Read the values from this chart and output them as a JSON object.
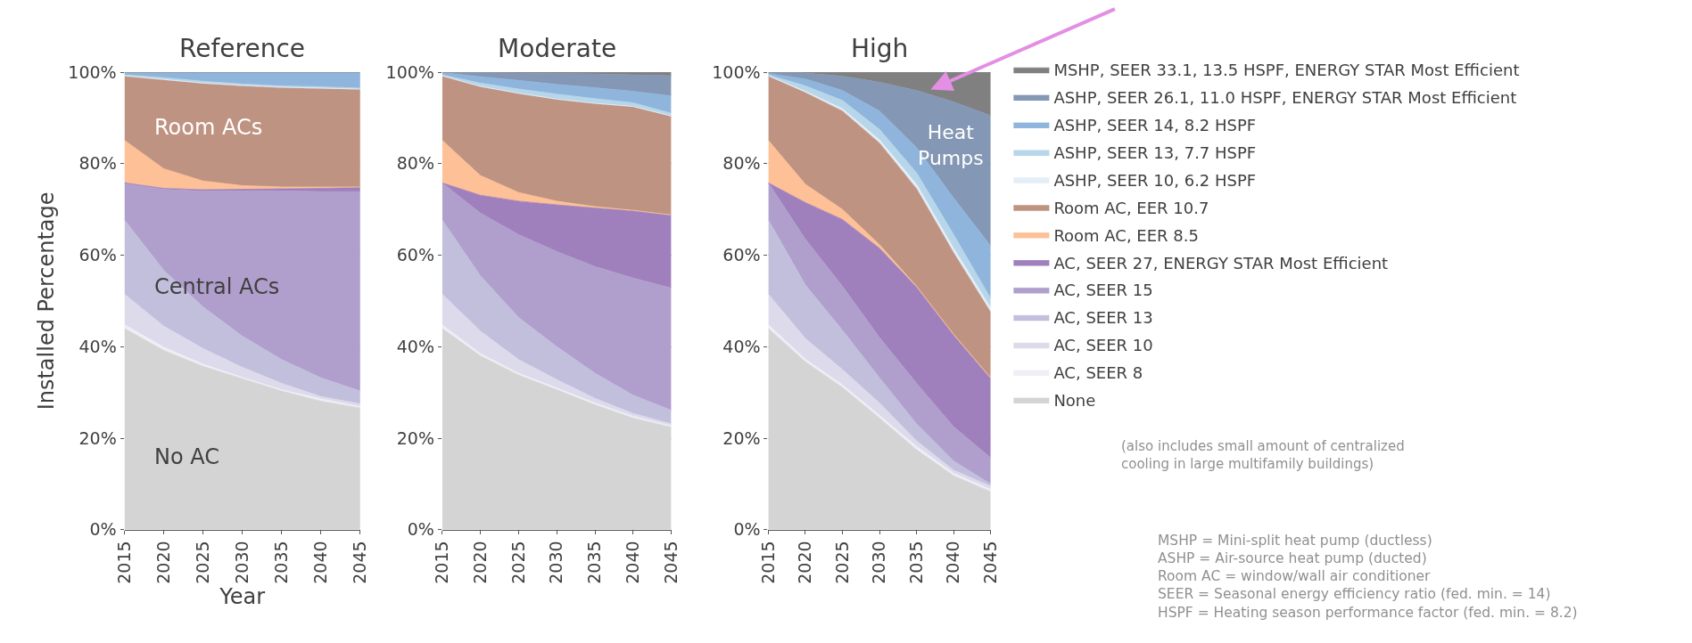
{
  "chart_data": [
    {
      "type": "area",
      "stacked": true,
      "title": "Reference",
      "xlabel": "Year",
      "ylabel": "Installed Percentage",
      "x": [
        2015,
        2020,
        2025,
        2030,
        2035,
        2040,
        2045
      ],
      "xlim": [
        2015,
        2045
      ],
      "xticks": [
        2015,
        2020,
        2025,
        2030,
        2035,
        2040,
        2045
      ],
      "ylim": [
        0,
        100
      ],
      "yticks": [
        {
          "value": 0,
          "label": "0%"
        },
        {
          "value": 20,
          "label": "20%"
        },
        {
          "value": 40,
          "label": "40%"
        },
        {
          "value": 60,
          "label": "60%"
        },
        {
          "value": 80,
          "label": "80%"
        },
        {
          "value": 100,
          "label": "100%"
        }
      ],
      "grid": true,
      "legend": "right",
      "marker": "none",
      "annotations": [
        "Room ACs",
        "Central ACs",
        "No AC"
      ],
      "series": [
        {
          "name": "None",
          "color": "#d4d4d4",
          "values": [
            44.0,
            39.2,
            35.7,
            33.0,
            30.3,
            28.1,
            26.6
          ]
        },
        {
          "name": "AC, SEER 8",
          "color": "#efeef6",
          "values": [
            0.8,
            0.7,
            0.5,
            0.3,
            0.3,
            0.5,
            0.3
          ]
        },
        {
          "name": "AC, SEER 10",
          "color": "#dcdaeb",
          "values": [
            6.7,
            4.6,
            3.4,
            2.2,
            1.4,
            0.5,
            0.6
          ]
        },
        {
          "name": "AC, SEER 13",
          "color": "#c2bfdd",
          "values": [
            16.2,
            12.2,
            9.1,
            6.8,
            5.2,
            4.1,
            2.8
          ]
        },
        {
          "name": "AC, SEER 15",
          "color": "#b09fcc",
          "values": [
            8.1,
            17.7,
            25.3,
            31.7,
            36.8,
            40.7,
            43.6
          ]
        },
        {
          "name": "AC, SEER 27, ENERGY STAR Most Efficient",
          "color": "#9f80bd",
          "values": [
            0,
            0.2,
            0.3,
            0.4,
            0.5,
            0.7,
            0.9
          ]
        },
        {
          "name": "Room AC, EER 8.5",
          "color": "#fdc097",
          "values": [
            9.3,
            4.3,
            1.9,
            0.8,
            0.4,
            0.3,
            0.1
          ]
        },
        {
          "name": "Room AC, EER 10.7",
          "color": "#bf9381",
          "values": [
            14.0,
            19.4,
            21.3,
            21.8,
            21.7,
            21.5,
            21.3
          ]
        },
        {
          "name": "ASHP, SEER 10, 6.2 HSPF",
          "color": "#e3eef8",
          "values": [
            0.1,
            0.1,
            0.1,
            0.1,
            0.1,
            0.1,
            0.1
          ]
        },
        {
          "name": "ASHP, SEER 13, 7.7 HSPF",
          "color": "#b7d6ea",
          "values": [
            0.2,
            0.4,
            0.4,
            0.3,
            0.3,
            0.3,
            0.2
          ]
        },
        {
          "name": "ASHP, SEER 14, 8.2 HSPF",
          "color": "#8fb5dc",
          "values": [
            0.5,
            1.1,
            1.9,
            2.5,
            2.9,
            3.1,
            3.4
          ]
        },
        {
          "name": "ASHP, SEER 26.1, 11.0 HSPF, ENERGY STAR Most Efficient",
          "color": "#8497b4",
          "values": [
            0.1,
            0.1,
            0.1,
            0.1,
            0.1,
            0.1,
            0.1
          ]
        },
        {
          "name": "MSHP, SEER 33.1, 13.5 HSPF, ENERGY STAR Most Efficient",
          "color": "#808080",
          "values": [
            null,
            null,
            null,
            null,
            null,
            null,
            null
          ]
        }
      ]
    },
    {
      "type": "area",
      "stacked": true,
      "title": "Moderate",
      "x": [
        2015,
        2020,
        2025,
        2030,
        2035,
        2040,
        2045
      ],
      "xlim": [
        2015,
        2045
      ],
      "xticks": [
        2015,
        2020,
        2025,
        2030,
        2035,
        2040,
        2045
      ],
      "ylim": [
        0,
        100
      ],
      "yticks": [
        {
          "value": 0,
          "label": "0%"
        },
        {
          "value": 20,
          "label": "20%"
        },
        {
          "value": 40,
          "label": "40%"
        },
        {
          "value": 60,
          "label": "60%"
        },
        {
          "value": 80,
          "label": "80%"
        },
        {
          "value": 100,
          "label": "100%"
        }
      ],
      "grid": true,
      "marker": "none",
      "series": [
        {
          "color": "#d4d4d4",
          "values": [
            44.0,
            38.0,
            33.8,
            30.6,
            27.3,
            24.4,
            22.4
          ]
        },
        {
          "color": "#efeef6",
          "values": [
            0.8,
            0.5,
            0.4,
            0.4,
            0.4,
            0.4,
            0.3
          ]
        },
        {
          "color": "#dcdaeb",
          "values": [
            6.7,
            4.9,
            3.0,
            1.8,
            1.0,
            0.6,
            0.4
          ]
        },
        {
          "color": "#c2bfdd",
          "values": [
            16.2,
            12.1,
            9.2,
            7.2,
            5.5,
            4.0,
            3.0
          ]
        },
        {
          "color": "#b09fcc",
          "values": [
            8.1,
            13.7,
            18.1,
            20.8,
            23.3,
            25.6,
            26.7
          ]
        },
        {
          "color": "#9f80bd",
          "values": [
            0,
            3.9,
            7.3,
            10.2,
            12.8,
            14.7,
            15.9
          ]
        },
        {
          "color": "#fdc097",
          "values": [
            9.3,
            4.3,
            1.9,
            0.8,
            0.3,
            0.1,
            0.1
          ]
        },
        {
          "color": "#bf9381",
          "values": [
            14.0,
            19.4,
            21.6,
            22.2,
            22.5,
            22.6,
            21.5
          ]
        },
        {
          "color": "#e3eef8",
          "values": [
            0.1,
            0.1,
            0.1,
            0.1,
            0.1,
            0.1,
            0.1
          ]
        },
        {
          "color": "#b7d6ea",
          "values": [
            0.2,
            0.7,
            0.9,
            1.1,
            1.0,
            0.8,
            0.6
          ]
        },
        {
          "color": "#8fb5dc",
          "values": [
            0.5,
            1.4,
            1.9,
            2.1,
            2.4,
            2.5,
            3.8
          ]
        },
        {
          "color": "#8497b4",
          "values": [
            0.1,
            0.9,
            1.6,
            2.4,
            3.0,
            3.6,
            4.4
          ]
        },
        {
          "color": "#808080",
          "values": [
            0,
            0.1,
            0.2,
            0.3,
            0.4,
            0.6,
            0.8
          ]
        }
      ]
    },
    {
      "type": "area",
      "stacked": true,
      "title": "High",
      "x": [
        2015,
        2020,
        2025,
        2030,
        2035,
        2040,
        2045
      ],
      "xlim": [
        2015,
        2045
      ],
      "xticks": [
        2015,
        2020,
        2025,
        2030,
        2035,
        2040,
        2045
      ],
      "ylim": [
        0,
        100
      ],
      "yticks": [
        {
          "value": 0,
          "label": "0%"
        },
        {
          "value": 20,
          "label": "20%"
        },
        {
          "value": 40,
          "label": "40%"
        },
        {
          "value": 60,
          "label": "60%"
        },
        {
          "value": 80,
          "label": "80%"
        },
        {
          "value": 100,
          "label": "100%"
        }
      ],
      "grid": true,
      "marker": "none",
      "annotations": [
        "Heat Pumps",
        "(also includes small amount of centralized\ncooling in large multifamily buildings)",
        "MSHP = Mini-split heat pump (ductless)\nASHP = Air-source heat pump (ducted)\nRoom AC = window/wall air conditioner\nSEER = Seasonal energy efficiency ratio (fed. min. = 14)\nHSPF = Heating season performance factor (fed. min. = 8.2)"
      ],
      "series": [
        {
          "color": "#d4d4d4",
          "values": [
            44.0,
            36.7,
            31.1,
            24.4,
            17.5,
            11.8,
            8.3
          ]
        },
        {
          "color": "#efeef6",
          "values": [
            0.8,
            0.6,
            0.6,
            0.6,
            0.7,
            0.5,
            0.5
          ]
        },
        {
          "color": "#dcdaeb",
          "values": [
            6.7,
            4.5,
            3.3,
            2.7,
            1.2,
            0.7,
            0.7
          ]
        },
        {
          "color": "#c2bfdd",
          "values": [
            16.2,
            11.7,
            8.6,
            5.5,
            3.7,
            2.0,
            0.5
          ]
        },
        {
          "color": "#b09fcc",
          "values": [
            8.1,
            10.0,
            9.6,
            8.8,
            8.9,
            7.5,
            5.7
          ]
        },
        {
          "color": "#9f80bd",
          "values": [
            0,
            8.0,
            14.6,
            19.5,
            21.0,
            20.0,
            17.3
          ]
        },
        {
          "color": "#fdc097",
          "values": [
            9.3,
            4.0,
            2.2,
            0.8,
            0.2,
            0.2,
            0.2
          ]
        },
        {
          "color": "#bf9381",
          "values": [
            14.0,
            20.0,
            21.5,
            22.2,
            21.3,
            17.8,
            14.3
          ]
        },
        {
          "color": "#e3eef8",
          "values": [
            0.1,
            0.3,
            0.5,
            0.7,
            1.0,
            1.0,
            1.0
          ]
        },
        {
          "color": "#b7d6ea",
          "values": [
            0.2,
            1.2,
            1.8,
            2.3,
            2.5,
            3.0,
            2.0
          ]
        },
        {
          "color": "#8fb5dc",
          "values": [
            0.3,
            1.5,
            2.2,
            4.0,
            5.5,
            8.0,
            11.5
          ]
        },
        {
          "color": "#8497b4",
          "values": [
            0.3,
            1.3,
            3.1,
            6.3,
            12.5,
            21.0,
            28.5
          ]
        },
        {
          "color": "#808080",
          "values": [
            0,
            0.2,
            0.9,
            2.2,
            4.0,
            6.5,
            9.5
          ]
        }
      ]
    }
  ]
}
